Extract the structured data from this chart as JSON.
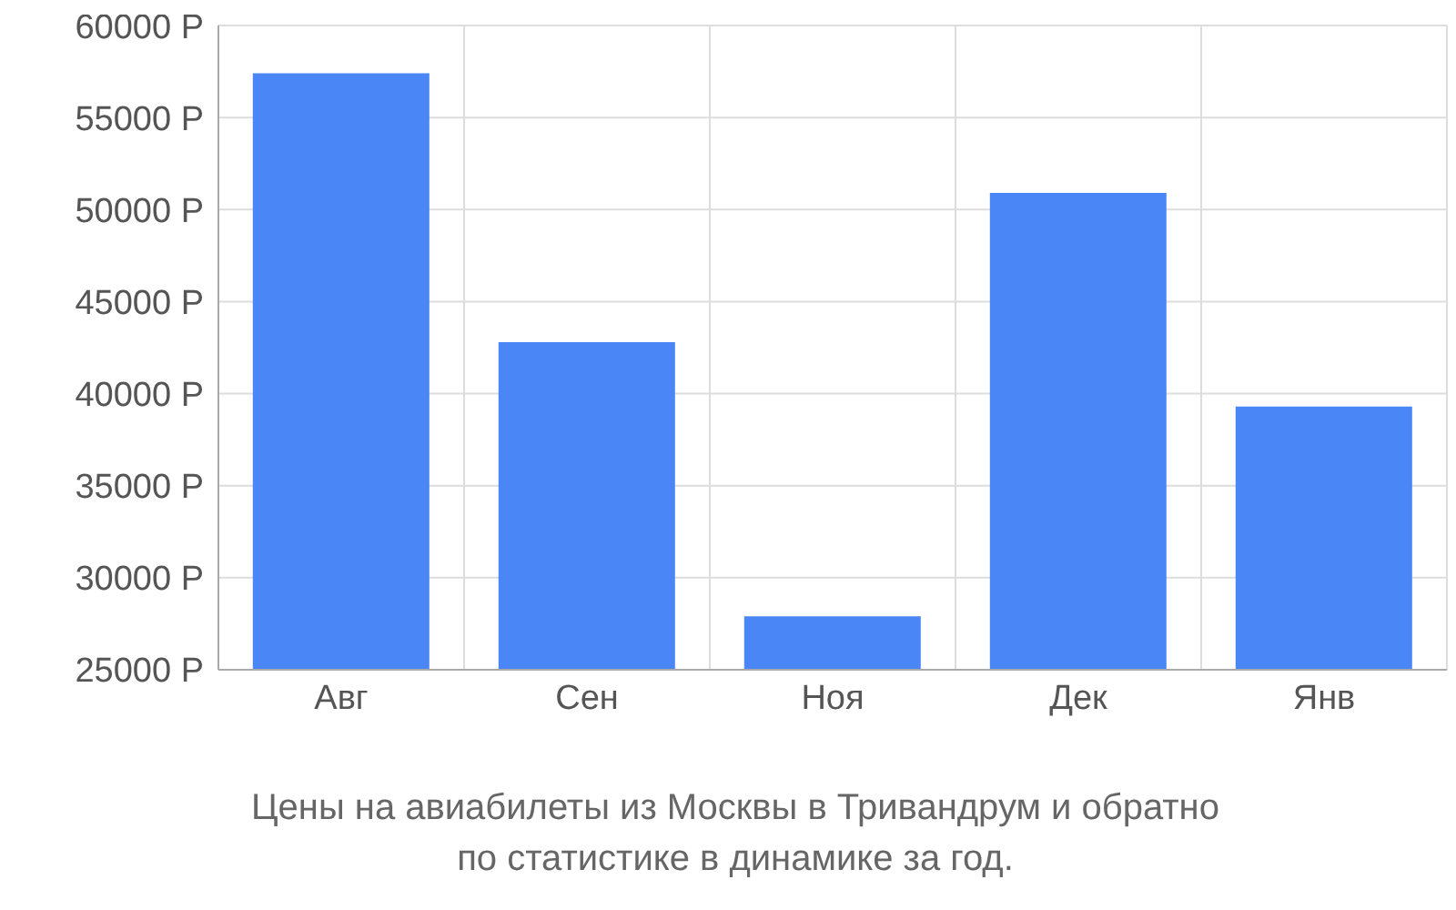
{
  "chart_data": {
    "type": "bar",
    "title": "Цены на авиабилеты из Москвы в Тривандрум и обратно\nпо статистике в динамике за год.",
    "categories": [
      "Авг",
      "Сен",
      "Ноя",
      "Дек",
      "Янв"
    ],
    "values": [
      57400,
      42800,
      27900,
      50900,
      39300
    ],
    "color": "#4a86f5",
    "ylim": [
      25000,
      60000
    ],
    "yticks": [
      {
        "value": 25000,
        "label": "25000 Р"
      },
      {
        "value": 30000,
        "label": "30000 Р"
      },
      {
        "value": 35000,
        "label": "35000 Р"
      },
      {
        "value": 40000,
        "label": "40000 Р"
      },
      {
        "value": 45000,
        "label": "45000 Р"
      },
      {
        "value": 50000,
        "label": "50000 Р"
      },
      {
        "value": 55000,
        "label": "55000 Р"
      },
      {
        "value": 60000,
        "label": "60000 Р"
      }
    ],
    "grid": true
  }
}
